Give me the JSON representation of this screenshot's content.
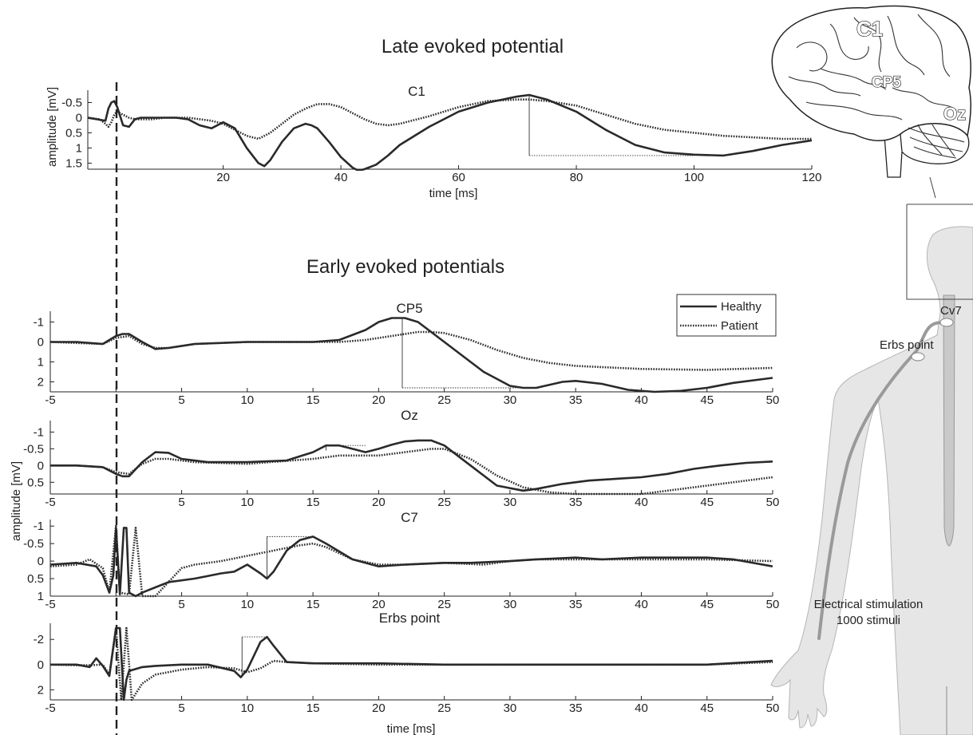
{
  "figure": {
    "late_title": "Late evoked potential",
    "early_title": "Early evoked potentials",
    "time_label_late": "time [ms]",
    "time_label_early": "time [ms]",
    "amp_label_late": "amplitude [mV]",
    "amp_label_early": "amplitude [mV]",
    "legend": {
      "healthy": "Healthy",
      "patient": "Patient"
    },
    "body_labels": {
      "c1": "C1",
      "cp5": "CP5",
      "oz": "Oz",
      "cv7": "Cv7",
      "erbs": "Erbs point",
      "stim_line1": "Electrical stimulation",
      "stim_line2": "1000 stimuli"
    },
    "colors": {
      "trace": "#2a2a2a",
      "body": "#e6e6e6",
      "nerve": "#999999"
    }
  },
  "chart_data": [
    {
      "type": "line",
      "title": "C1",
      "xlabel": "time [ms]",
      "ylabel": "amplitude [mV]",
      "xlim": [
        -3,
        120
      ],
      "ylim": [
        -0.75,
        1.7
      ],
      "y_inverted": true,
      "xticks": [
        20,
        40,
        60,
        80,
        100,
        120
      ],
      "yticks": [
        -0.5,
        0,
        0.5,
        1,
        1.5
      ],
      "ytick_labels": [
        "-0.5",
        "0",
        "0.5",
        "1",
        "1.5"
      ],
      "series": [
        {
          "name": "Healthy",
          "style": "solid",
          "x": [
            -3,
            -1.5,
            0,
            0.5,
            1,
            1.5,
            2,
            3,
            4,
            5,
            6,
            8,
            10,
            12,
            14,
            16,
            18,
            20,
            22,
            24,
            26,
            27,
            28,
            30,
            32,
            34,
            35,
            36,
            38,
            40,
            42,
            43,
            44,
            46,
            48,
            50,
            55,
            60,
            65,
            70,
            72,
            75,
            80,
            85,
            90,
            95,
            100,
            105,
            110,
            115,
            120
          ],
          "y": [
            0,
            0.05,
            0.1,
            -0.3,
            -0.5,
            -0.55,
            -0.35,
            0.25,
            0.3,
            0.05,
            0,
            0,
            0,
            0,
            0.05,
            0.25,
            0.35,
            0.15,
            0.35,
            1.0,
            1.5,
            1.6,
            1.4,
            0.8,
            0.35,
            0.2,
            0.25,
            0.35,
            0.8,
            1.3,
            1.65,
            1.75,
            1.7,
            1.55,
            1.25,
            0.9,
            0.3,
            -0.2,
            -0.5,
            -0.7,
            -0.75,
            -0.6,
            -0.2,
            0.4,
            0.9,
            1.15,
            1.22,
            1.25,
            1.1,
            0.9,
            0.75
          ]
        },
        {
          "name": "Patient",
          "style": "dotted",
          "x": [
            -3,
            -1,
            0,
            0.5,
            1,
            1.5,
            2,
            3,
            4,
            5,
            6,
            8,
            10,
            14,
            18,
            20,
            22,
            24,
            26,
            28,
            30,
            32,
            34,
            36,
            38,
            40,
            42,
            44,
            46,
            48,
            50,
            55,
            60,
            65,
            70,
            72,
            75,
            80,
            85,
            90,
            95,
            100,
            105,
            110,
            115,
            120
          ],
          "y": [
            0,
            0.05,
            0.2,
            0.3,
            0.15,
            -0.1,
            -0.2,
            -0.1,
            0,
            0.05,
            0.05,
            0.05,
            0,
            0,
            0.1,
            0.2,
            0.4,
            0.6,
            0.7,
            0.5,
            0.2,
            -0.1,
            -0.3,
            -0.45,
            -0.45,
            -0.35,
            -0.15,
            0.05,
            0.2,
            0.25,
            0.2,
            -0.05,
            -0.35,
            -0.55,
            -0.6,
            -0.6,
            -0.55,
            -0.4,
            -0.1,
            0.2,
            0.4,
            0.5,
            0.6,
            0.65,
            0.7,
            0.7
          ]
        }
      ]
    },
    {
      "type": "line",
      "title": "CP5",
      "xlim": [
        -5,
        50
      ],
      "ylim": [
        -1.3,
        2.5
      ],
      "y_inverted": true,
      "xticks": [
        -5,
        0,
        5,
        10,
        15,
        20,
        25,
        30,
        35,
        40,
        45,
        50
      ],
      "xtick_labels": [
        "-5",
        "",
        "5",
        "10",
        "15",
        "20",
        "25",
        "30",
        "35",
        "40",
        "45",
        "50"
      ],
      "yticks": [
        -1,
        0,
        1,
        2
      ],
      "ytick_labels": [
        "-1",
        "0",
        "1",
        "2"
      ],
      "series": [
        {
          "name": "Healthy",
          "style": "solid",
          "x": [
            -5,
            -3,
            -1,
            0,
            0.5,
            1,
            2,
            3,
            4,
            6,
            10,
            15,
            17,
            19,
            20,
            21,
            22,
            23,
            24,
            26,
            28,
            30,
            31,
            32,
            34,
            35,
            37,
            39,
            41,
            43,
            45,
            47,
            50
          ],
          "y": [
            0,
            0,
            0.1,
            -0.3,
            -0.4,
            -0.4,
            0,
            0.35,
            0.3,
            0.1,
            0,
            0,
            -0.1,
            -0.6,
            -1.0,
            -1.2,
            -1.2,
            -1.0,
            -0.5,
            0.5,
            1.5,
            2.2,
            2.3,
            2.3,
            2.0,
            1.95,
            2.1,
            2.4,
            2.5,
            2.45,
            2.3,
            2.05,
            1.8
          ]
        },
        {
          "name": "Patient",
          "style": "dotted",
          "x": [
            -5,
            -3,
            -1,
            0,
            1,
            2,
            3,
            4,
            6,
            10,
            15,
            17,
            19,
            21,
            23,
            24,
            25,
            27,
            29,
            31,
            33,
            35,
            40,
            45,
            50
          ],
          "y": [
            0,
            0.05,
            0.1,
            -0.2,
            -0.3,
            0.1,
            0.3,
            0.3,
            0.1,
            0,
            0,
            0,
            -0.1,
            -0.3,
            -0.5,
            -0.5,
            -0.45,
            -0.1,
            0.4,
            0.8,
            1.05,
            1.2,
            1.35,
            1.4,
            1.3
          ]
        }
      ]
    },
    {
      "type": "line",
      "title": "Oz",
      "xlim": [
        -5,
        50
      ],
      "ylim": [
        -1.2,
        0.85
      ],
      "y_inverted": true,
      "xticks": [
        -5,
        0,
        5,
        10,
        15,
        20,
        25,
        30,
        35,
        40,
        45,
        50
      ],
      "xtick_labels": [
        "-5",
        "",
        "5",
        "10",
        "15",
        "20",
        "25",
        "30",
        "35",
        "40",
        "45",
        "50"
      ],
      "yticks": [
        -1,
        -0.5,
        0,
        0.5
      ],
      "ytick_labels": [
        "-1",
        "-0.5",
        "0",
        "0.5"
      ],
      "series": [
        {
          "name": "Healthy",
          "style": "solid",
          "x": [
            -5,
            -3,
            -1,
            0,
            0.5,
            1,
            2,
            3,
            4,
            5,
            7,
            10,
            13,
            15,
            16,
            17,
            18,
            19,
            20,
            21,
            22,
            23,
            24,
            25,
            27,
            29,
            31,
            32,
            34,
            36,
            38,
            40,
            42,
            44,
            46,
            48,
            50
          ],
          "y": [
            0,
            0,
            0.05,
            0.25,
            0.32,
            0.32,
            -0.1,
            -0.4,
            -0.38,
            -0.2,
            -0.1,
            -0.1,
            -0.15,
            -0.4,
            -0.6,
            -0.6,
            -0.5,
            -0.4,
            -0.5,
            -0.62,
            -0.72,
            -0.75,
            -0.75,
            -0.6,
            0,
            0.6,
            0.75,
            0.7,
            0.55,
            0.45,
            0.4,
            0.35,
            0.25,
            0.1,
            0,
            -0.08,
            -0.12
          ]
        },
        {
          "name": "Patient",
          "style": "dotted",
          "x": [
            -5,
            -3,
            -1,
            0,
            1,
            2,
            3,
            4,
            6,
            10,
            15,
            17,
            20,
            22,
            24,
            25,
            27,
            29,
            31,
            33,
            35,
            40,
            45,
            50
          ],
          "y": [
            0,
            0,
            0.05,
            0.2,
            0.25,
            -0.05,
            -0.2,
            -0.2,
            -0.1,
            -0.05,
            -0.2,
            -0.3,
            -0.3,
            -0.4,
            -0.5,
            -0.5,
            -0.2,
            0.3,
            0.65,
            0.8,
            0.85,
            0.85,
            0.6,
            0.35
          ]
        }
      ]
    },
    {
      "type": "line",
      "title": "C7",
      "xlim": [
        -5,
        50
      ],
      "ylim": [
        -1.05,
        1.0
      ],
      "y_inverted": true,
      "xticks": [
        -5,
        0,
        5,
        10,
        15,
        20,
        25,
        30,
        35,
        40,
        45,
        50
      ],
      "xtick_labels": [
        "-5",
        "",
        "5",
        "10",
        "15",
        "20",
        "25",
        "30",
        "35",
        "40",
        "45",
        "50"
      ],
      "yticks": [
        -1,
        -0.5,
        0,
        0.5,
        1
      ],
      "ytick_labels": [
        "-1",
        "-0.5",
        "0",
        "0.5",
        "1"
      ],
      "series": [
        {
          "name": "Healthy",
          "style": "solid",
          "x": [
            -5,
            -3,
            -1.5,
            -1,
            -0.5,
            -0.2,
            0,
            0.3,
            0.6,
            0.8,
            1,
            1.5,
            2,
            3,
            4,
            6,
            8,
            9,
            10,
            11,
            11.5,
            12,
            13,
            14,
            15,
            16,
            18,
            20,
            22,
            25,
            27,
            30,
            32,
            35,
            37,
            40,
            42,
            45,
            47,
            50
          ],
          "y": [
            0.1,
            0.05,
            0.15,
            0.4,
            0.9,
            0.4,
            -0.95,
            0.95,
            -0.95,
            -0.95,
            0.9,
            1.0,
            0.9,
            0.75,
            0.6,
            0.5,
            0.35,
            0.3,
            0.1,
            0.35,
            0.5,
            0.3,
            -0.3,
            -0.6,
            -0.7,
            -0.5,
            -0.05,
            0.15,
            0.1,
            0.05,
            0.05,
            0,
            -0.05,
            -0.1,
            -0.05,
            -0.1,
            -0.1,
            -0.1,
            -0.05,
            0.15
          ]
        },
        {
          "name": "Patient",
          "style": "dotted",
          "x": [
            -5,
            -3,
            -2,
            -1,
            -0.5,
            0,
            0.3,
            1,
            1.5,
            2,
            3,
            4,
            5,
            6,
            8,
            10,
            12,
            14,
            15,
            16,
            18,
            20,
            22,
            25,
            28,
            30,
            32,
            35,
            40,
            45,
            50
          ],
          "y": [
            0.15,
            0.1,
            -0.05,
            0.2,
            0.9,
            -1.0,
            0.9,
            0.95,
            -0.95,
            1.0,
            1.0,
            0.6,
            0.2,
            0.1,
            0,
            -0.15,
            -0.3,
            -0.45,
            -0.5,
            -0.4,
            -0.05,
            0.1,
            0.1,
            0.05,
            0.1,
            0,
            -0.05,
            -0.05,
            -0.05,
            -0.05,
            0
          ]
        }
      ]
    },
    {
      "type": "line",
      "title": "Erbs point",
      "xlabel": "time [ms]",
      "xlim": [
        -5,
        50
      ],
      "ylim": [
        -2.9,
        2.8
      ],
      "y_inverted": true,
      "xticks": [
        -5,
        0,
        5,
        10,
        15,
        20,
        25,
        30,
        35,
        40,
        45,
        50
      ],
      "xtick_labels": [
        "-5",
        "",
        "5",
        "10",
        "15",
        "20",
        "25",
        "30",
        "35",
        "40",
        "45",
        "50"
      ],
      "yticks": [
        -2,
        0,
        2
      ],
      "ytick_labels": [
        "-2",
        "0",
        "2"
      ],
      "series": [
        {
          "name": "Healthy",
          "style": "solid",
          "x": [
            -5,
            -3,
            -2,
            -1.5,
            -1,
            -0.5,
            0,
            0.3,
            0.6,
            0.8,
            1,
            2,
            3,
            5,
            7,
            9,
            9.5,
            10,
            11,
            11.5,
            12,
            13,
            15,
            20,
            25,
            30,
            35,
            40,
            45,
            50
          ],
          "y": [
            0,
            0,
            0.2,
            -0.5,
            0.1,
            0.9,
            -2.9,
            -2.9,
            2.8,
            1.2,
            0.5,
            0.2,
            0.1,
            0,
            0,
            0.5,
            1.0,
            0.4,
            -1.8,
            -2.2,
            -1.5,
            -0.2,
            -0.1,
            -0.1,
            0,
            0,
            0,
            0,
            0,
            -0.3
          ]
        },
        {
          "name": "Patient",
          "style": "dotted",
          "x": [
            -5,
            -3,
            -2,
            -1,
            -0.5,
            0,
            0.4,
            0.8,
            1.2,
            2,
            3,
            5,
            7,
            9,
            10,
            11,
            12,
            13,
            15,
            20,
            25,
            30,
            35,
            40,
            45,
            50
          ],
          "y": [
            0,
            0.05,
            0.05,
            0,
            0.8,
            -2.9,
            2.8,
            -2.9,
            2.8,
            1.5,
            0.8,
            0.4,
            0.2,
            0.3,
            0.6,
            0.3,
            -0.3,
            -0.2,
            -0.1,
            0,
            0,
            0,
            0,
            0,
            0,
            -0.2
          ]
        }
      ]
    }
  ]
}
